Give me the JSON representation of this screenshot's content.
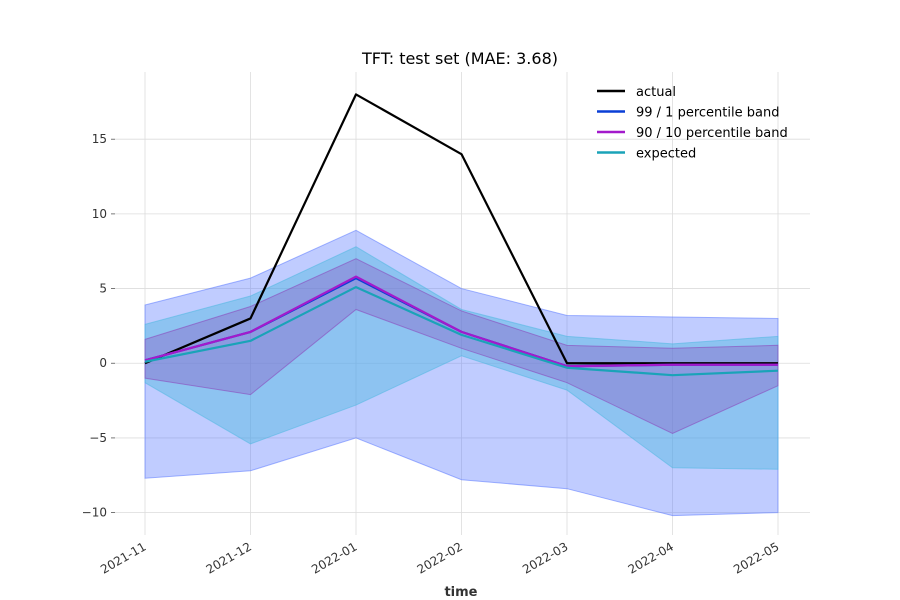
{
  "chart_data": {
    "type": "line",
    "title": "TFT: test set (MAE: 3.68)",
    "xlabel": "time",
    "ylabel": "",
    "x": [
      "2021-11",
      "2021-12",
      "2022-01",
      "2022-02",
      "2022-03",
      "2022-04",
      "2022-05"
    ],
    "yticks": [
      -10,
      -5,
      0,
      5,
      10,
      15
    ],
    "ytick_labels": [
      "−10",
      "−5",
      "0",
      "5",
      "10",
      "15"
    ],
    "ylim": [
      -11.5,
      19.5
    ],
    "grid": true,
    "legend_position": "top-right",
    "series": [
      {
        "name": "actual",
        "color": "#000000",
        "values": [
          0,
          3,
          18,
          14,
          0,
          0,
          0
        ]
      },
      {
        "name": "99 / 1 percentile band",
        "color": "#0a3fd6",
        "values": [
          0.2,
          2.1,
          5.7,
          2.1,
          -0.2,
          -0.1,
          -0.1
        ]
      },
      {
        "name": "90 / 10 percentile band",
        "color": "#a31acb",
        "values": [
          0.2,
          2.1,
          5.8,
          2.1,
          -0.2,
          -0.1,
          -0.1
        ]
      },
      {
        "name": "expected",
        "color": "#1aa3b8",
        "values": [
          0.1,
          1.5,
          5.1,
          1.9,
          -0.3,
          -0.8,
          -0.5
        ]
      }
    ],
    "bands": [
      {
        "series": "99 / 1 percentile band",
        "color": "#5a78ff",
        "opacity": 0.38,
        "upper": [
          3.9,
          5.7,
          8.9,
          5.0,
          3.2,
          3.1,
          3.0
        ],
        "lower": [
          -7.7,
          -7.2,
          -5.0,
          -7.8,
          -8.4,
          -10.2,
          -10.0
        ]
      },
      {
        "series": "expected",
        "color": "#4fb8e0",
        "opacity": 0.45,
        "upper": [
          2.6,
          4.5,
          7.8,
          3.6,
          1.8,
          1.3,
          1.8
        ],
        "lower": [
          -1.3,
          -5.4,
          -2.8,
          0.5,
          -1.8,
          -7.0,
          -7.1
        ]
      },
      {
        "series": "90 / 10 percentile band",
        "color": "#8a3fb8",
        "opacity": 0.3,
        "upper": [
          1.6,
          3.8,
          7.0,
          3.5,
          1.2,
          1.0,
          1.2
        ],
        "lower": [
          -1.0,
          -2.1,
          3.6,
          1.0,
          -1.3,
          -4.7,
          -1.5
        ]
      }
    ]
  }
}
